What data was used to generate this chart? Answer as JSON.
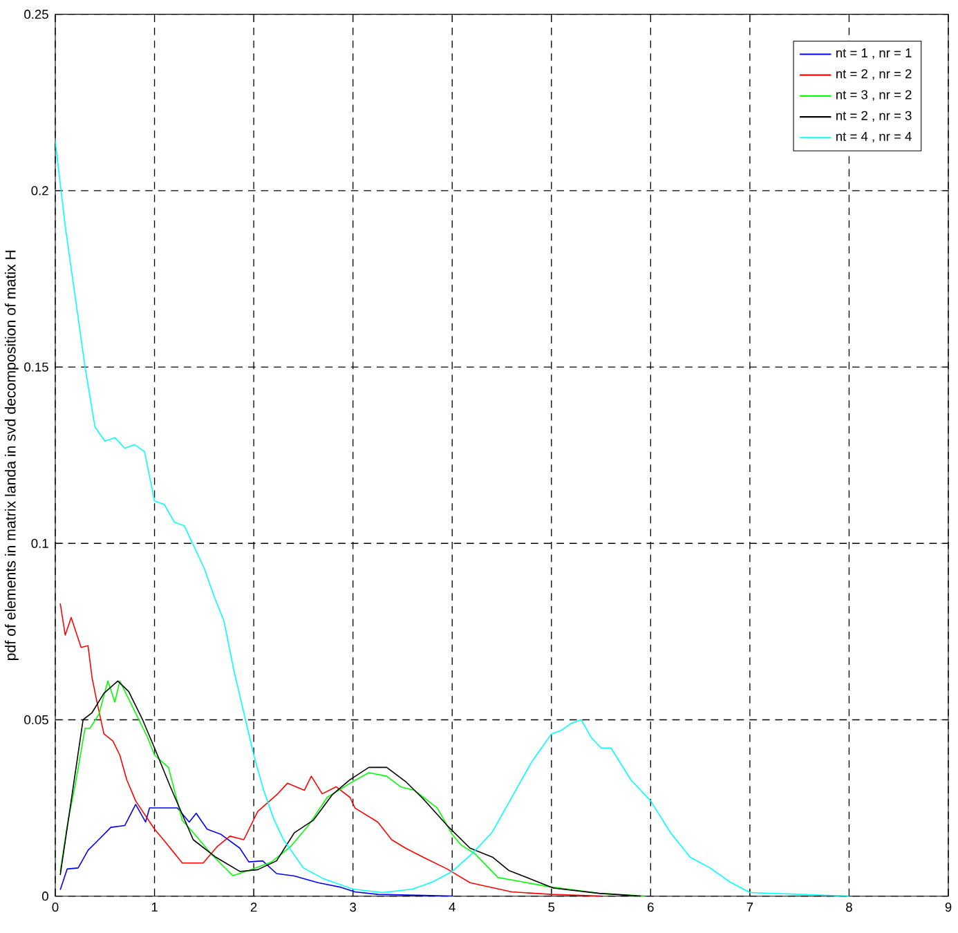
{
  "chart_data": {
    "type": "line",
    "ylabel": "pdf of elements in matrix landa in svd decomposition of matix H",
    "xlim": [
      0,
      9
    ],
    "ylim": [
      0,
      0.25
    ],
    "xticks": [
      0,
      1,
      2,
      3,
      4,
      5,
      6,
      7,
      8,
      9
    ],
    "yticks": [
      0,
      0.05,
      0.1,
      0.15,
      0.2,
      0.25
    ],
    "grid": true,
    "legend": "top right",
    "marker": "none",
    "line_style": "solid",
    "series": [
      {
        "name": "nt = 1 , nr = 1",
        "color": "#0000ff",
        "x": [
          0.05,
          0.12,
          0.23,
          0.33,
          0.42,
          0.56,
          0.7,
          0.81,
          0.91,
          0.95,
          1.11,
          1.23,
          1.35,
          1.42,
          1.53,
          1.67,
          1.86,
          1.95,
          2.09,
          2.23,
          2.41,
          2.65,
          2.88,
          3.02,
          3.25,
          3.72,
          4.0
        ],
        "values": [
          0.0018,
          0.0077,
          0.008,
          0.013,
          0.0155,
          0.0195,
          0.02,
          0.026,
          0.021,
          0.025,
          0.025,
          0.025,
          0.021,
          0.0235,
          0.019,
          0.0175,
          0.0136,
          0.0097,
          0.01,
          0.0064,
          0.0057,
          0.0038,
          0.0025,
          0.0012,
          0.0005,
          0.0002,
          0
        ]
      },
      {
        "name": "nt = 2 , nr = 2",
        "color": "#ff0000",
        "x": [
          0.05,
          0.1,
          0.16,
          0.26,
          0.33,
          0.37,
          0.42,
          0.49,
          0.58,
          0.65,
          0.72,
          0.81,
          1.0,
          1.09,
          1.28,
          1.49,
          1.63,
          1.76,
          1.9,
          2.04,
          2.23,
          2.34,
          2.51,
          2.58,
          2.69,
          2.83,
          2.97,
          3.02,
          3.25,
          3.39,
          3.53,
          3.71,
          3.95,
          4.18,
          4.6,
          5.0,
          5.5
        ],
        "values": [
          0.083,
          0.074,
          0.079,
          0.0705,
          0.071,
          0.062,
          0.055,
          0.046,
          0.044,
          0.04,
          0.033,
          0.027,
          0.019,
          0.016,
          0.0094,
          0.0094,
          0.014,
          0.017,
          0.016,
          0.024,
          0.0287,
          0.032,
          0.03,
          0.034,
          0.029,
          0.031,
          0.028,
          0.025,
          0.021,
          0.016,
          0.0136,
          0.011,
          0.0077,
          0.0038,
          0.0012,
          0.0005,
          0
        ]
      },
      {
        "name": "nt = 3 , nr = 2",
        "color": "#00ff00",
        "x": [
          0.05,
          0.12,
          0.21,
          0.3,
          0.35,
          0.44,
          0.53,
          0.6,
          0.65,
          0.79,
          0.93,
          1.0,
          1.14,
          1.28,
          1.39,
          1.58,
          1.79,
          1.95,
          2.18,
          2.37,
          2.55,
          2.74,
          2.97,
          3.16,
          3.34,
          3.48,
          3.62,
          3.85,
          4.0,
          4.09,
          4.23,
          4.46,
          4.97,
          5.48,
          5.94
        ],
        "values": [
          0.007,
          0.02,
          0.033,
          0.0476,
          0.0476,
          0.0516,
          0.061,
          0.055,
          0.061,
          0.053,
          0.045,
          0.04,
          0.0365,
          0.0215,
          0.018,
          0.0117,
          0.0058,
          0.0073,
          0.0097,
          0.014,
          0.02,
          0.028,
          0.032,
          0.035,
          0.034,
          0.031,
          0.03,
          0.025,
          0.0175,
          0.0145,
          0.012,
          0.0053,
          0.0027,
          0.0008,
          0
        ]
      },
      {
        "name": "nt = 2 , nr = 3",
        "color": "#000000",
        "x": [
          0.05,
          0.28,
          0.37,
          0.49,
          0.63,
          0.74,
          0.88,
          1.0,
          1.16,
          1.39,
          1.62,
          1.86,
          2.04,
          2.23,
          2.41,
          2.6,
          2.79,
          2.97,
          3.16,
          3.34,
          3.53,
          3.71,
          3.95,
          4.18,
          4.41,
          4.57,
          5.02,
          5.48,
          5.9
        ],
        "values": [
          0.006,
          0.05,
          0.052,
          0.0575,
          0.061,
          0.058,
          0.05,
          0.042,
          0.031,
          0.016,
          0.011,
          0.007,
          0.0075,
          0.01,
          0.018,
          0.0215,
          0.0287,
          0.033,
          0.0365,
          0.0365,
          0.0325,
          0.0275,
          0.02,
          0.0136,
          0.011,
          0.0073,
          0.0023,
          0.0008,
          0
        ]
      },
      {
        "name": "nt = 4 , nr = 4",
        "color": "#00ffff",
        "x": [
          0,
          0.1,
          0.2,
          0.3,
          0.4,
          0.5,
          0.6,
          0.7,
          0.8,
          0.9,
          1.0,
          1.1,
          1.2,
          1.3,
          1.5,
          1.6,
          1.7,
          1.8,
          1.9,
          2.0,
          2.1,
          2.2,
          2.3,
          2.4,
          2.5,
          2.7,
          3.0,
          3.3,
          3.6,
          3.8,
          4.0,
          4.2,
          4.4,
          4.6,
          4.8,
          4.9,
          5.0,
          5.1,
          5.2,
          5.3,
          5.4,
          5.5,
          5.6,
          5.8,
          5.9,
          6.0,
          6.2,
          6.4,
          6.6,
          6.8,
          7.0,
          7.5,
          8.0
        ],
        "values": [
          0.214,
          0.19,
          0.17,
          0.15,
          0.133,
          0.129,
          0.13,
          0.127,
          0.128,
          0.126,
          0.112,
          0.111,
          0.106,
          0.105,
          0.093,
          0.085,
          0.078,
          0.064,
          0.052,
          0.04,
          0.03,
          0.022,
          0.016,
          0.012,
          0.008,
          0.005,
          0.002,
          0.001,
          0.002,
          0.004,
          0.007,
          0.012,
          0.018,
          0.028,
          0.038,
          0.042,
          0.046,
          0.047,
          0.049,
          0.05,
          0.045,
          0.042,
          0.042,
          0.033,
          0.03,
          0.027,
          0.018,
          0.011,
          0.008,
          0.004,
          0.001,
          0.0005,
          0
        ]
      }
    ]
  }
}
